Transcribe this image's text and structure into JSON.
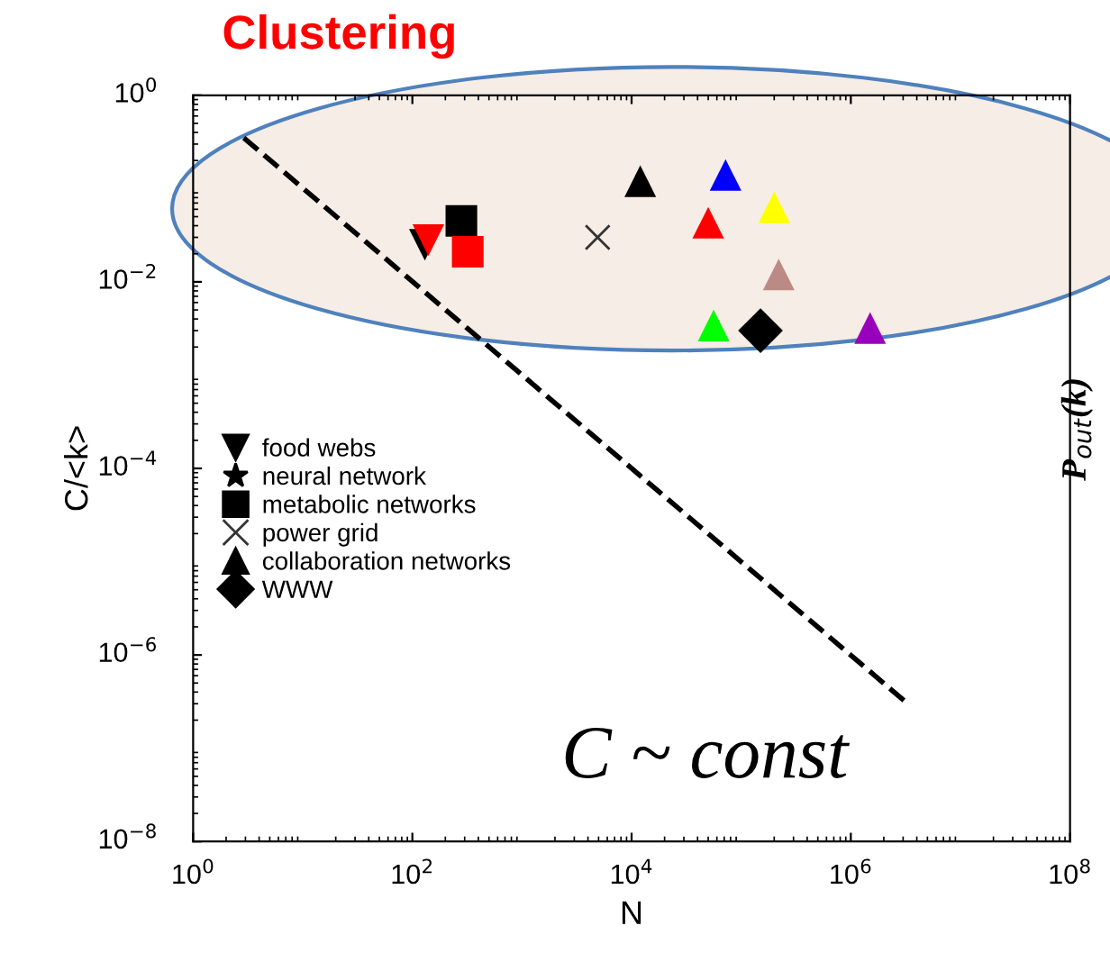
{
  "chart_data": {
    "type": "scatter",
    "title": "Clustering",
    "xlabel": "N",
    "ylabel": "C/<k>",
    "log": "xy",
    "xlim": [
      1,
      100000000
    ],
    "ylim": [
      1e-08,
      1
    ],
    "xticks": [
      {
        "value": 1,
        "label": "10$^{0}$"
      },
      {
        "value": 100,
        "label": "10$^{2}$"
      },
      {
        "value": 10000,
        "label": "10$^{4}$"
      },
      {
        "value": 1000000,
        "label": "10$^{6}$"
      },
      {
        "value": 100000000,
        "label": "10$^{8}$"
      }
    ],
    "yticks": [
      {
        "value": 1e-08,
        "label": "10$^{−8}$"
      },
      {
        "value": 1e-06,
        "label": "10$^{−6}$"
      },
      {
        "value": 0.0001,
        "label": "10$^{−4}$"
      },
      {
        "value": 0.01,
        "label": "10$^{−2}$"
      },
      {
        "value": 1,
        "label": "10$^{0}$"
      }
    ],
    "legend": "center left",
    "grid": false,
    "series": [
      {
        "name": "food webs",
        "marker": "triangle_down",
        "color": "#000000",
        "x": [
          130,
          140
        ],
        "values": [
          0.025,
          0.028
        ],
        "colors": [
          "#000000",
          "#ff0000"
        ]
      },
      {
        "name": "neural network",
        "marker": "star",
        "color": "#000000"
      },
      {
        "name": "metabolic networks",
        "marker": "square",
        "color": "#000000",
        "x": [
          280,
          320
        ],
        "values": [
          0.045,
          0.021
        ],
        "colors": [
          "#000000",
          "#ff0000"
        ]
      },
      {
        "name": "power grid",
        "marker": "cross",
        "color": "#333333",
        "x": [
          4900
        ],
        "values": [
          0.03
        ],
        "colors": [
          "#333333"
        ]
      },
      {
        "name": "collaboration networks",
        "marker": "triangle",
        "color": "#000000",
        "x": [
          12000,
          72000,
          200000,
          50000,
          220000,
          56000,
          1500000
        ],
        "values": [
          0.12,
          0.14,
          0.063,
          0.043,
          0.012,
          0.0034,
          0.0032
        ],
        "colors": [
          "#000000",
          "#0000ff",
          "#ffff00",
          "#ff0000",
          "#bc8a84",
          "#00ff00",
          "#9900bb"
        ]
      },
      {
        "name": "WWW",
        "marker": "diamond",
        "color": "#000000",
        "x": [
          150000
        ],
        "values": [
          0.003
        ],
        "colors": [
          "#000000"
        ]
      },
      {
        "type": "line",
        "line_style": "dashed",
        "color": "#000000",
        "x": [
          2.9,
          3200000
        ],
        "values": [
          0.35,
          3.1e-07
        ]
      }
    ],
    "annotations": [
      "C ~ const",
      "P$_{out}$(k)"
    ]
  }
}
